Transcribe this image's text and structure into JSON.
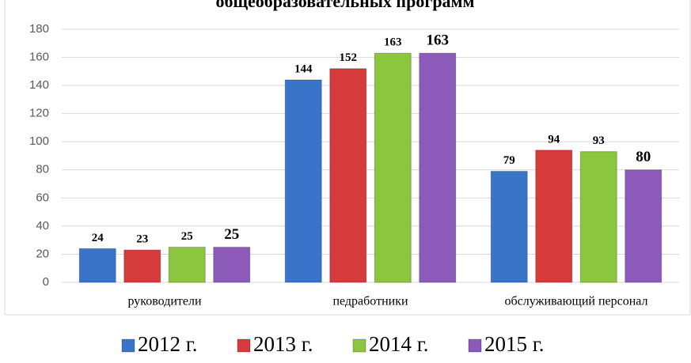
{
  "chart_data": {
    "type": "bar",
    "title": "общеобразовательных программ",
    "categories": [
      "руководители",
      "педработники",
      "обслуживающий персонал"
    ],
    "series": [
      {
        "name": "2012 г.",
        "color": "#3a74c8",
        "values": [
          24,
          144,
          79
        ]
      },
      {
        "name": "2013 г.",
        "color": "#d63b3b",
        "values": [
          23,
          152,
          94
        ]
      },
      {
        "name": "2014 г.",
        "color": "#8cc63e",
        "values": [
          25,
          163,
          93
        ]
      },
      {
        "name": "2015 г.",
        "color": "#8c5ab8",
        "values": [
          25,
          163,
          80
        ]
      }
    ],
    "ylim": [
      0,
      180
    ],
    "yticks": [
      0,
      20,
      40,
      60,
      80,
      100,
      120,
      140,
      160,
      180
    ],
    "grid": true,
    "legend": "bottom"
  }
}
